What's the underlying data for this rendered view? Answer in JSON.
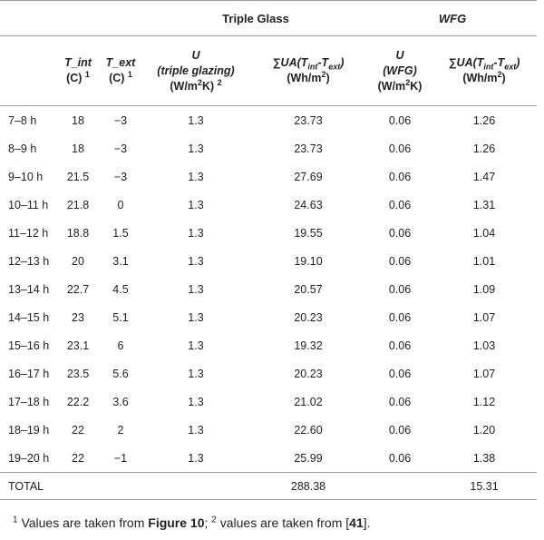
{
  "table": {
    "group_headers": {
      "triple": "Triple Glass",
      "wfg": "WFG"
    },
    "col_headers": {
      "t_int": "T_int",
      "t_int_unit": "(C)",
      "t_int_note": "1",
      "t_ext": "T_ext",
      "t_ext_unit": "(C)",
      "t_ext_note": "1",
      "u_triple_u": "U",
      "u_triple_desc": "(triple glazing)",
      "u_triple_unit_a": "(W/m",
      "u_triple_unit_sup": "2",
      "u_triple_unit_b": "K)",
      "u_triple_note": "2",
      "sum_triple_prefix": "∑UA(T",
      "sum_triple_sub1": "int",
      "sum_triple_mid": "-T",
      "sum_triple_sub2": "ext",
      "sum_triple_suffix": ")",
      "sum_triple_unit_a": "(Wh/m",
      "sum_triple_unit_sup": "2",
      "sum_triple_unit_b": ")",
      "u_wfg_u": "U",
      "u_wfg_desc": "(WFG)",
      "u_wfg_unit_a": "(W/m",
      "u_wfg_unit_sup": "2",
      "u_wfg_unit_b": "K)",
      "sum_wfg_prefix": "∑UA(T",
      "sum_wfg_sub1": "int",
      "sum_wfg_mid": "-T",
      "sum_wfg_sub2": "ext",
      "sum_wfg_suffix": ")",
      "sum_wfg_unit_a": "(Wh/m",
      "sum_wfg_unit_sup": "2",
      "sum_wfg_unit_b": ")"
    },
    "rows": [
      [
        "7–8 h",
        "18",
        "−3",
        "1.3",
        "23.73",
        "0.06",
        "1.26"
      ],
      [
        "8–9 h",
        "18",
        "−3",
        "1.3",
        "23.73",
        "0.06",
        "1.26"
      ],
      [
        "9–10 h",
        "21.5",
        "−3",
        "1.3",
        "27.69",
        "0.06",
        "1.47"
      ],
      [
        "10–11 h",
        "21.8",
        "0",
        "1.3",
        "24.63",
        "0.06",
        "1.31"
      ],
      [
        "11–12 h",
        "18.8",
        "1.5",
        "1.3",
        "19.55",
        "0.06",
        "1.04"
      ],
      [
        "12–13 h",
        "20",
        "3.1",
        "1.3",
        "19.10",
        "0.06",
        "1.01"
      ],
      [
        "13–14 h",
        "22.7",
        "4.5",
        "1.3",
        "20.57",
        "0.06",
        "1.09"
      ],
      [
        "14–15 h",
        "23",
        "5.1",
        "1.3",
        "20.23",
        "0.06",
        "1.07"
      ],
      [
        "15–16 h",
        "23.1",
        "6",
        "1.3",
        "19.32",
        "0.06",
        "1.03"
      ],
      [
        "16–17 h",
        "23.5",
        "5.6",
        "1.3",
        "20.23",
        "0.06",
        "1.07"
      ],
      [
        "17–18 h",
        "22.2",
        "3.6",
        "1.3",
        "21.02",
        "0.06",
        "1.12"
      ],
      [
        "18–19 h",
        "22",
        "2",
        "1.3",
        "22.60",
        "0.06",
        "1.20"
      ],
      [
        "19–20 h",
        "22",
        "−1",
        "1.3",
        "25.99",
        "0.06",
        "1.38"
      ]
    ],
    "total": {
      "label": "TOTAL",
      "triple_sum": "288.38",
      "wfg_sum": "15.31"
    }
  },
  "footnote": {
    "n1": "1",
    "text1": " Values are taken from ",
    "fig_link": "Figure 10",
    "sep": "; ",
    "n2": "2",
    "text2": " values are taken from [",
    "ref_link": "41",
    "end": "]."
  }
}
